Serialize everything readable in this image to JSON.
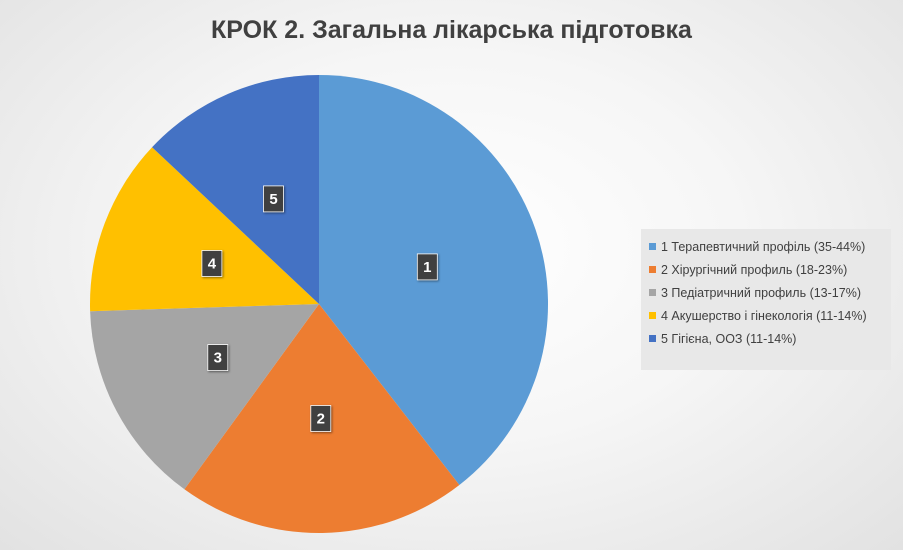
{
  "chart_data": {
    "type": "pie",
    "title": "КРОК 2. Загальна лікарська підготовка",
    "categories": [
      "1 Терапевтичний профіль (35-44%)",
      "2 Хірургічний профиль (18-23%)",
      "3 Педіатричний профиль (13-17%)",
      "4 Акушерство і гінекологія (11-14%)",
      "5 Гігієна, ООЗ (11-14%)"
    ],
    "slice_labels": [
      "1",
      "2",
      "3",
      "4",
      "5"
    ],
    "values": [
      39.5,
      20.5,
      14.5,
      12.5,
      13.0
    ],
    "colors": [
      "#5B9BD5",
      "#ED7D31",
      "#A5A5A5",
      "#FFC000",
      "#4472C4"
    ],
    "legend_position": "right"
  }
}
